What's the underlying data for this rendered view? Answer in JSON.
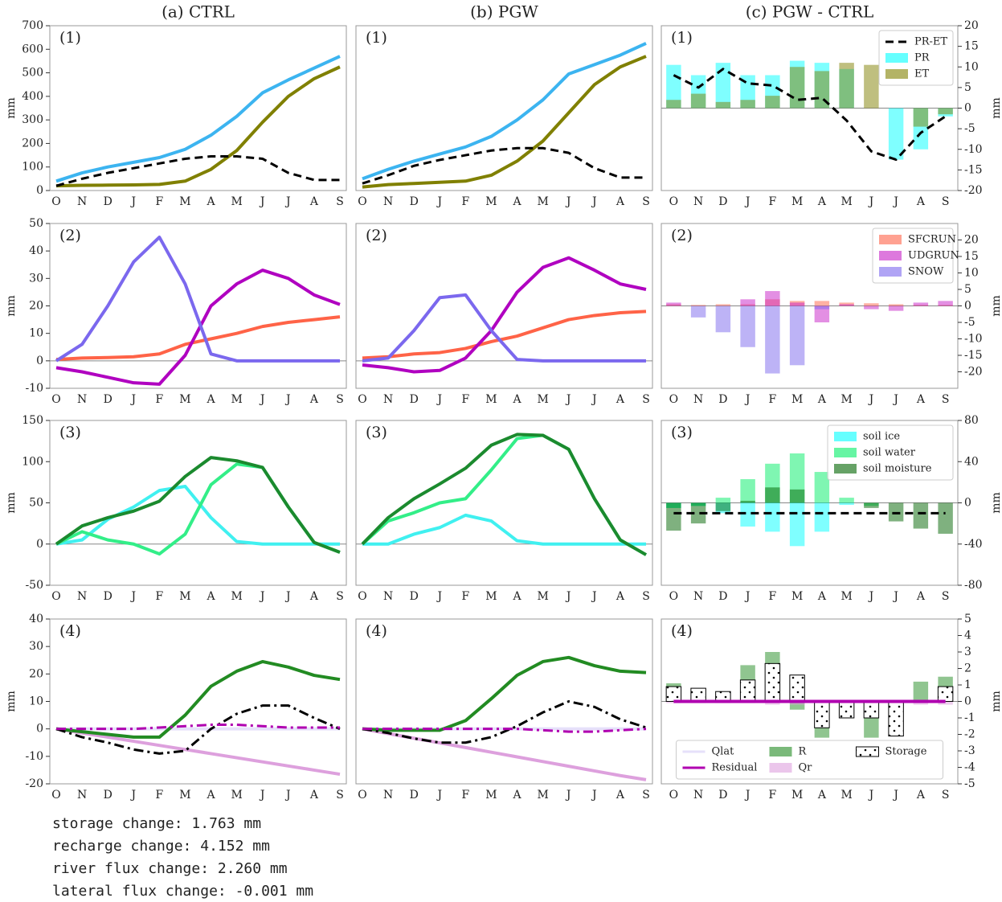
{
  "column_titles": [
    "(a) CTRL",
    "(b) PGW",
    "(c) PGW - CTRL"
  ],
  "notes": [
    "storage change:  1.763 mm",
    "recharge change:  4.152 mm",
    "river flux change:  2.260 mm",
    "lateral flux change:  -0.001 mm"
  ],
  "chart_data": [
    {
      "type": "line",
      "panel_label": "(1)",
      "ylabel": "mm",
      "categories": [
        "O",
        "N",
        "D",
        "J",
        "F",
        "M",
        "A",
        "M",
        "J",
        "J",
        "A",
        "S"
      ],
      "ylim": [
        0,
        700
      ],
      "yticks": [
        0,
        100,
        200,
        300,
        400,
        500,
        600,
        700
      ],
      "series": [
        {
          "color": "#3cb4f0",
          "style": "-",
          "values": [
            40,
            75,
            100,
            120,
            140,
            175,
            235,
            315,
            415,
            470,
            520,
            570
          ]
        },
        {
          "color": "#808000",
          "style": "-",
          "values": [
            20,
            22,
            23,
            24,
            26,
            40,
            90,
            170,
            290,
            400,
            475,
            525
          ]
        },
        {
          "color": "#000000",
          "style": "--",
          "values": [
            20,
            50,
            75,
            95,
            115,
            135,
            145,
            145,
            135,
            75,
            45,
            45
          ]
        }
      ]
    },
    {
      "type": "line",
      "panel_label": "(1)",
      "categories": [
        "O",
        "N",
        "D",
        "J",
        "F",
        "M",
        "A",
        "M",
        "J",
        "J",
        "A",
        "S"
      ],
      "ylim": [
        0,
        700
      ],
      "series": [
        {
          "color": "#3cb4f0",
          "style": "-",
          "values": [
            50,
            90,
            125,
            155,
            185,
            230,
            300,
            385,
            495,
            535,
            575,
            625
          ]
        },
        {
          "color": "#808000",
          "style": "-",
          "values": [
            15,
            25,
            30,
            35,
            40,
            65,
            125,
            210,
            330,
            450,
            525,
            570
          ]
        },
        {
          "color": "#000000",
          "style": "--",
          "values": [
            30,
            65,
            105,
            130,
            150,
            170,
            180,
            180,
            160,
            95,
            55,
            55
          ]
        }
      ]
    },
    {
      "type": "bar",
      "panel_label": "(1)",
      "ylabel": "mm",
      "y_axis_side": "right",
      "zero_line": true,
      "legend": "upper right",
      "categories": [
        "O",
        "N",
        "D",
        "J",
        "F",
        "M",
        "A",
        "M",
        "J",
        "J",
        "A",
        "S"
      ],
      "ylim": [
        -20,
        20
      ],
      "yticks": [
        -20,
        -15,
        -10,
        -5,
        0,
        5,
        10,
        15,
        20
      ],
      "series": [
        {
          "name": "PR-ET",
          "type": "line",
          "color": "#000000",
          "style": "--",
          "values": [
            8,
            5,
            9.5,
            6,
            5.5,
            2,
            2.5,
            -3,
            -10.5,
            -12.5,
            -6,
            -2
          ]
        },
        {
          "name": "PR",
          "color": "#00ffff",
          "values": [
            10.5,
            8,
            11,
            8,
            8,
            11.5,
            11,
            9.5,
            0,
            -12.5,
            -10,
            -2
          ]
        },
        {
          "name": "ET",
          "color": "#808000",
          "values": [
            2,
            3.5,
            1.5,
            2,
            3,
            10,
            9,
            11,
            10.5,
            0,
            -4.5,
            -1.5
          ]
        }
      ]
    },
    {
      "type": "line",
      "panel_label": "(2)",
      "ylabel": "mm",
      "zero_line": true,
      "categories": [
        "O",
        "N",
        "D",
        "J",
        "F",
        "M",
        "A",
        "M",
        "J",
        "J",
        "A",
        "S"
      ],
      "ylim": [
        -10,
        50
      ],
      "yticks": [
        -10,
        0,
        10,
        20,
        30,
        40,
        50
      ],
      "series": [
        {
          "color": "#ff6347",
          "style": "-",
          "values": [
            0.5,
            1,
            1.2,
            1.5,
            2.5,
            6,
            8,
            10,
            12.5,
            14,
            15,
            16
          ]
        },
        {
          "color": "#b000c0",
          "style": "-",
          "values": [
            -2.5,
            -4,
            -6,
            -8,
            -8.5,
            2,
            20,
            28,
            33,
            30,
            24,
            20.5
          ]
        },
        {
          "color": "#7b68ee",
          "style": "-",
          "values": [
            0,
            6,
            20,
            36,
            45,
            28,
            2.5,
            0,
            0,
            0,
            0,
            0
          ]
        }
      ]
    },
    {
      "type": "line",
      "panel_label": "(2)",
      "zero_line": true,
      "categories": [
        "O",
        "N",
        "D",
        "J",
        "F",
        "M",
        "A",
        "M",
        "J",
        "J",
        "A",
        "S"
      ],
      "ylim": [
        -10,
        50
      ],
      "series": [
        {
          "color": "#ff6347",
          "style": "-",
          "values": [
            1,
            1.5,
            2.5,
            3,
            4.5,
            7,
            9,
            12,
            15,
            16.5,
            17.5,
            18
          ]
        },
        {
          "color": "#b000c0",
          "style": "-",
          "values": [
            -1.5,
            -2.5,
            -4,
            -3.5,
            1,
            11,
            25,
            34,
            37.5,
            33,
            28,
            26
          ]
        },
        {
          "color": "#7b68ee",
          "style": "-",
          "values": [
            0,
            1,
            11,
            23,
            24,
            11,
            0.5,
            0,
            0,
            0,
            0,
            0
          ]
        }
      ]
    },
    {
      "type": "bar",
      "panel_label": "(2)",
      "ylabel": "mm",
      "y_axis_side": "right",
      "zero_line": true,
      "legend": "upper right",
      "categories": [
        "O",
        "N",
        "D",
        "J",
        "F",
        "M",
        "A",
        "M",
        "J",
        "J",
        "A",
        "S"
      ],
      "ylim": [
        -25,
        25
      ],
      "yticks": [
        -20,
        -15,
        -10,
        -5,
        0,
        5,
        10,
        15,
        20
      ],
      "series": [
        {
          "name": "SFCRUN",
          "color": "#ff6347",
          "values": [
            0.5,
            0.3,
            0.5,
            0.5,
            2,
            1.5,
            1.5,
            1,
            0.8,
            0.5,
            0.3,
            0.3
          ]
        },
        {
          "name": "UDGRUN",
          "color": "#c71fc7",
          "values": [
            1,
            0,
            0,
            2,
            4.5,
            1,
            -5,
            0.5,
            -1,
            -1.5,
            1,
            1.5
          ]
        },
        {
          "name": "SNOW",
          "color": "#7b68ee",
          "values": [
            0,
            -3.5,
            -8,
            -12.5,
            -20.5,
            -18,
            -1,
            0,
            0,
            0,
            0,
            0
          ]
        }
      ]
    },
    {
      "type": "line",
      "panel_label": "(3)",
      "ylabel": "mm",
      "zero_line": true,
      "categories": [
        "O",
        "N",
        "D",
        "J",
        "F",
        "M",
        "A",
        "M",
        "J",
        "J",
        "A",
        "S"
      ],
      "ylim": [
        -50,
        150
      ],
      "yticks": [
        -50,
        0,
        50,
        100,
        150
      ],
      "series": [
        {
          "color": "#40f0f0",
          "style": "-",
          "values": [
            0,
            5,
            30,
            45,
            65,
            70,
            32,
            3,
            0,
            0,
            0,
            0
          ]
        },
        {
          "color": "#33ee88",
          "style": "-",
          "values": [
            0,
            15,
            5,
            0,
            -12,
            12,
            72,
            97,
            93,
            45,
            2,
            -10
          ]
        },
        {
          "color": "#1b8a2e",
          "style": "-",
          "values": [
            0,
            22,
            32,
            40,
            52,
            82,
            105,
            101,
            93,
            45,
            2,
            -10
          ]
        }
      ]
    },
    {
      "type": "line",
      "panel_label": "(3)",
      "zero_line": true,
      "categories": [
        "O",
        "N",
        "D",
        "J",
        "F",
        "M",
        "A",
        "M",
        "J",
        "J",
        "A",
        "S"
      ],
      "ylim": [
        -50,
        150
      ],
      "series": [
        {
          "color": "#40f0f0",
          "style": "-",
          "values": [
            0,
            0,
            12,
            20,
            35,
            28,
            4,
            0,
            0,
            0,
            0,
            0
          ]
        },
        {
          "color": "#33ee88",
          "style": "-",
          "values": [
            0,
            28,
            38,
            50,
            55,
            90,
            128,
            132,
            115,
            55,
            5,
            -13
          ]
        },
        {
          "color": "#1b8a2e",
          "style": "-",
          "values": [
            0,
            32,
            55,
            73,
            92,
            120,
            133,
            132,
            115,
            55,
            5,
            -13
          ]
        }
      ]
    },
    {
      "type": "bar",
      "panel_label": "(3)",
      "ylabel": "mm",
      "y_axis_side": "right",
      "ytick_color": "#2ca02c",
      "zero_line": true,
      "legend": "upper right",
      "categories": [
        "O",
        "N",
        "D",
        "J",
        "F",
        "M",
        "A",
        "M",
        "J",
        "J",
        "A",
        "S"
      ],
      "ylim": [
        -80,
        80
      ],
      "yticks": [
        -80,
        -40,
        0,
        40,
        80
      ],
      "series": [
        {
          "name": "soil ice",
          "color": "#00ffff",
          "values": [
            -5,
            -3,
            -10,
            -23,
            -28,
            -42,
            -28,
            -2,
            0,
            0,
            0,
            0
          ]
        },
        {
          "name": "soil water",
          "color": "#00ee66",
          "values": [
            -5,
            -3,
            5,
            23,
            38,
            48,
            30,
            5,
            -3,
            0,
            0,
            0
          ]
        },
        {
          "name": "soil moisture",
          "color": "#006400",
          "values": [
            -27,
            -20,
            -8,
            2,
            15,
            13,
            0,
            0,
            -5,
            -18,
            -25,
            -30
          ]
        },
        {
          "type": "line",
          "color": "#000000",
          "style": "--",
          "values": [
            -10,
            -10,
            -10,
            -10,
            -10,
            -10,
            -10,
            -10,
            -10,
            -10,
            -10,
            -10
          ]
        }
      ]
    },
    {
      "type": "line",
      "panel_label": "(4)",
      "ylabel": "mm",
      "categories": [
        "O",
        "N",
        "D",
        "J",
        "F",
        "M",
        "A",
        "M",
        "J",
        "J",
        "A",
        "S"
      ],
      "ylim": [
        -20,
        40
      ],
      "yticks": [
        -20,
        -10,
        0,
        10,
        20,
        30,
        40
      ],
      "series": [
        {
          "color": "#e6e0fa",
          "style": "-",
          "values": [
            0,
            0,
            0,
            0,
            0,
            0,
            0,
            0,
            0,
            0,
            0,
            0
          ]
        },
        {
          "color": "#dda0dd",
          "style": "-",
          "values": [
            0,
            -1.5,
            -3,
            -4.5,
            -6,
            -7.5,
            -9,
            -10.5,
            -12,
            -13.5,
            -15,
            -16.5
          ]
        },
        {
          "color": "#228b22",
          "style": "-",
          "values": [
            0,
            -1,
            -2,
            -3,
            -3,
            5,
            15.5,
            21,
            24.5,
            22.5,
            19.5,
            18
          ]
        },
        {
          "color": "#000000",
          "style": "-.",
          "values": [
            0,
            -3,
            -5,
            -7.5,
            -9,
            -8,
            0,
            5.5,
            8.5,
            8.5,
            4,
            0
          ]
        },
        {
          "color": "#b000b0",
          "style": "-.",
          "values": [
            0,
            0,
            0,
            0,
            0.5,
            1,
            1.5,
            1.5,
            1,
            0.5,
            0.5,
            0.5
          ]
        }
      ]
    },
    {
      "type": "line",
      "panel_label": "(4)",
      "categories": [
        "O",
        "N",
        "D",
        "J",
        "F",
        "M",
        "A",
        "M",
        "J",
        "J",
        "A",
        "S"
      ],
      "ylim": [
        -20,
        40
      ],
      "series": [
        {
          "color": "#e6e0fa",
          "style": "-",
          "values": [
            0,
            0,
            0,
            0,
            0,
            0,
            0,
            0,
            0,
            0,
            0,
            0
          ]
        },
        {
          "color": "#dda0dd",
          "style": "-",
          "values": [
            0,
            -1.7,
            -3.4,
            -5.1,
            -6.8,
            -8.5,
            -10.2,
            -11.9,
            -13.6,
            -15.3,
            -17,
            -18.5
          ]
        },
        {
          "color": "#228b22",
          "style": "-",
          "values": [
            0,
            -0.5,
            -0.5,
            -0.5,
            3,
            11,
            19.5,
            24.5,
            26,
            23,
            21,
            20.5
          ]
        },
        {
          "color": "#000000",
          "style": "-.",
          "values": [
            0,
            -1.5,
            -3.5,
            -5,
            -5,
            -3,
            1,
            6,
            10,
            8,
            3.5,
            0.5
          ]
        },
        {
          "color": "#b000b0",
          "style": "-.",
          "values": [
            0,
            0,
            0,
            0,
            0,
            0,
            0,
            -0.5,
            -1,
            -1,
            -0.5,
            0
          ]
        }
      ]
    },
    {
      "type": "bar",
      "panel_label": "(4)",
      "ylabel": "mm",
      "y_axis_side": "right",
      "zero_line": true,
      "legend": "lower center",
      "legend_ncol": 3,
      "categories": [
        "O",
        "N",
        "D",
        "J",
        "F",
        "M",
        "A",
        "M",
        "J",
        "J",
        "A",
        "S"
      ],
      "ylim": [
        -5,
        5
      ],
      "yticks": [
        -5,
        -4,
        -3,
        -2,
        -1,
        0,
        1,
        2,
        3,
        4,
        5
      ],
      "series": [
        {
          "name": "Qlat",
          "type": "line",
          "color": "#e6e0fa",
          "style": "-",
          "values": [
            0,
            0,
            0,
            0,
            0,
            0,
            0,
            0,
            0,
            0,
            0,
            0
          ]
        },
        {
          "name": "Residual",
          "type": "line",
          "color": "#b000b0",
          "style": "-",
          "values": [
            0,
            0,
            0,
            0,
            0,
            0,
            0,
            0,
            0,
            0,
            0,
            0
          ]
        },
        {
          "name": "R",
          "color": "#228b22",
          "values": [
            1.1,
            0.6,
            0.5,
            2.2,
            3,
            -0.5,
            -2.2,
            0,
            -2.2,
            -1.5,
            1.2,
            1.5
          ]
        },
        {
          "name": "Qr",
          "color": "#dda0dd",
          "values": [
            -0.1,
            -0.1,
            -0.1,
            -0.1,
            -0.2,
            -0.2,
            -0.2,
            -0.2,
            -0.2,
            -0.2,
            -0.2,
            -0.2
          ]
        },
        {
          "name": "Storage",
          "color": "#ffffff",
          "hatch": true,
          "values": [
            0.9,
            0.8,
            0.6,
            1.3,
            2.3,
            1.6,
            -1.6,
            -1,
            -1,
            -2.1,
            0,
            0.9
          ]
        }
      ]
    }
  ]
}
